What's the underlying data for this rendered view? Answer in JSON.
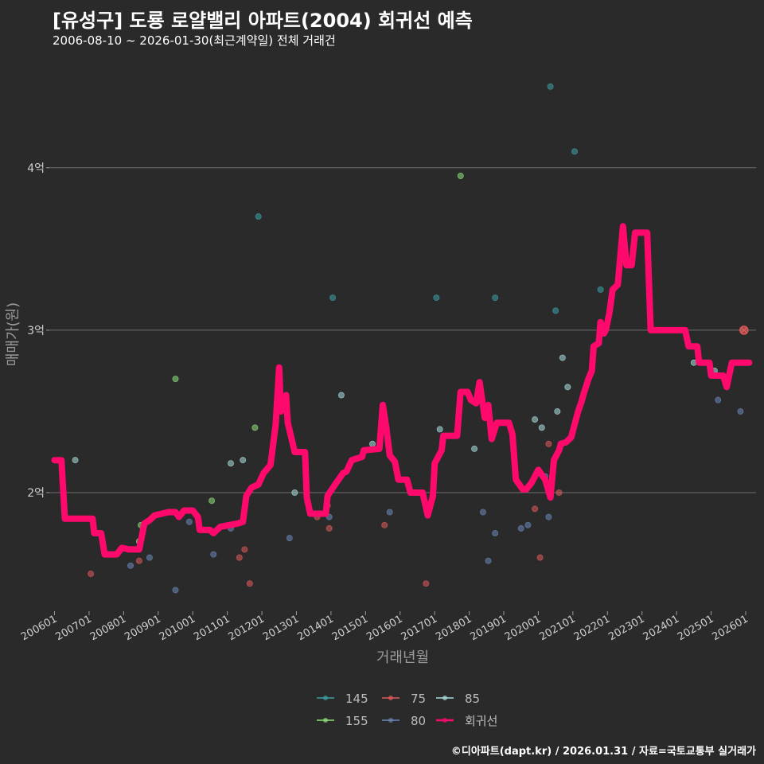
{
  "header": {
    "title": "[유성구] 도룡 로얄밸리 아파트(2004) 회귀선 예측",
    "subtitle": "2006-08-10 ~ 2026-01-30(최근계약일) 전체 거래건"
  },
  "caption": "©디아파트(dapt.kr) / 2026.01.31 / 자료=국토교통부 실거래가",
  "colors": {
    "background": "#2b2a2b",
    "grid": "#6e6e6e",
    "regression": "#ff0a6c",
    "s145": "#3aa0a6",
    "s75": "#e05a5a",
    "s85": "#a8dede",
    "s155": "#8ee07a",
    "s80": "#6b86b8"
  },
  "chart_data": {
    "type": "scatter",
    "title": "[유성구] 도룡 로얄밸리 아파트(2004) 회귀선 예측",
    "xlabel": "거래년월",
    "ylabel": "매매가(원)",
    "xlim": [
      2005.85,
      2026.3
    ],
    "ylim": [
      1.27,
      4.68
    ],
    "x_ticks": [
      2006,
      2007,
      2008,
      2009,
      2010,
      2011,
      2012,
      2013,
      2014,
      2015,
      2016,
      2017,
      2018,
      2019,
      2020,
      2021,
      2022,
      2023,
      2024,
      2025,
      2026
    ],
    "x_tick_labels": [
      "200601",
      "200701",
      "200801",
      "200901",
      "201001",
      "201101",
      "201201",
      "201301",
      "201401",
      "201501",
      "201601",
      "201701",
      "201801",
      "201901",
      "202001",
      "202101",
      "202201",
      "202301",
      "202401",
      "202501",
      "202601"
    ],
    "y_ticks": [
      2,
      3,
      4
    ],
    "y_tick_labels": [
      "2억",
      "3억",
      "4억"
    ],
    "legend": {
      "position": "bottom",
      "items": [
        {
          "key": "145",
          "label": "145"
        },
        {
          "key": "75",
          "label": "75"
        },
        {
          "key": "85",
          "label": "85"
        },
        {
          "key": "155",
          "label": "155"
        },
        {
          "key": "80",
          "label": "80"
        },
        {
          "key": "reg",
          "label": "회귀선"
        }
      ]
    },
    "series": [
      {
        "name": "145",
        "points": [
          [
            2011.9,
            3.7
          ],
          [
            2014.05,
            3.2
          ],
          [
            2017.05,
            3.2
          ],
          [
            2018.75,
            3.2
          ],
          [
            2020.35,
            4.5
          ],
          [
            2021.05,
            4.1
          ],
          [
            2020.5,
            3.12
          ],
          [
            2021.8,
            3.25
          ]
        ]
      },
      {
        "name": "155",
        "points": [
          [
            2009.5,
            2.7
          ],
          [
            2017.75,
            3.95
          ],
          [
            2008.5,
            1.8
          ],
          [
            2008.45,
            1.7
          ],
          [
            2010.55,
            1.95
          ],
          [
            2011.8,
            2.4
          ]
        ]
      },
      {
        "name": "85",
        "points": [
          [
            2006.6,
            2.2
          ],
          [
            2011.45,
            2.2
          ],
          [
            2011.1,
            2.18
          ],
          [
            2014.3,
            2.6
          ],
          [
            2015.2,
            2.3
          ],
          [
            2019.9,
            2.45
          ],
          [
            2020.1,
            2.4
          ],
          [
            2020.55,
            2.5
          ],
          [
            2020.7,
            2.83
          ],
          [
            2020.85,
            2.65
          ],
          [
            2024.5,
            2.8
          ],
          [
            2025.1,
            2.75
          ],
          [
            2012.95,
            2.0
          ],
          [
            2017.15,
            2.39
          ],
          [
            2018.15,
            2.27
          ]
        ]
      },
      {
        "name": "75",
        "points": [
          [
            2007.05,
            1.5
          ],
          [
            2008.45,
            1.58
          ],
          [
            2011.35,
            1.6
          ],
          [
            2011.5,
            1.65
          ],
          [
            2011.65,
            1.44
          ],
          [
            2013.6,
            1.85
          ],
          [
            2013.9,
            1.92
          ],
          [
            2013.95,
            1.78
          ],
          [
            2015.55,
            1.8
          ],
          [
            2016.75,
            1.44
          ],
          [
            2019.9,
            1.9
          ],
          [
            2020.05,
            1.6
          ],
          [
            2020.3,
            2.3
          ],
          [
            2020.6,
            2.0
          ],
          [
            2025.95,
            3.0
          ]
        ]
      },
      {
        "name": "80",
        "points": [
          [
            2008.2,
            1.55
          ],
          [
            2008.75,
            1.6
          ],
          [
            2009.5,
            1.4
          ],
          [
            2009.9,
            1.82
          ],
          [
            2010.6,
            1.62
          ],
          [
            2011.1,
            1.78
          ],
          [
            2012.8,
            1.72
          ],
          [
            2013.95,
            1.85
          ],
          [
            2015.7,
            1.88
          ],
          [
            2018.4,
            1.88
          ],
          [
            2018.55,
            1.58
          ],
          [
            2018.75,
            1.75
          ],
          [
            2019.5,
            1.78
          ],
          [
            2019.7,
            1.8
          ],
          [
            2020.2,
            2.1
          ],
          [
            2020.3,
            1.85
          ],
          [
            2025.2,
            2.57
          ],
          [
            2025.85,
            2.5
          ]
        ]
      }
    ],
    "regression": {
      "name": "회귀선",
      "points": [
        [
          2006.0,
          2.2
        ],
        [
          2006.2,
          2.2
        ],
        [
          2006.3,
          1.84
        ],
        [
          2007.1,
          1.84
        ],
        [
          2007.15,
          1.75
        ],
        [
          2007.35,
          1.75
        ],
        [
          2007.45,
          1.62
        ],
        [
          2007.8,
          1.62
        ],
        [
          2007.95,
          1.66
        ],
        [
          2008.15,
          1.65
        ],
        [
          2008.45,
          1.65
        ],
        [
          2008.6,
          1.81
        ],
        [
          2008.75,
          1.83
        ],
        [
          2008.9,
          1.86
        ],
        [
          2009.1,
          1.87
        ],
        [
          2009.3,
          1.88
        ],
        [
          2009.5,
          1.88
        ],
        [
          2009.6,
          1.85
        ],
        [
          2009.75,
          1.89
        ],
        [
          2010.0,
          1.89
        ],
        [
          2010.15,
          1.85
        ],
        [
          2010.2,
          1.77
        ],
        [
          2010.5,
          1.77
        ],
        [
          2010.6,
          1.75
        ],
        [
          2010.8,
          1.79
        ],
        [
          2011.3,
          1.81
        ],
        [
          2011.45,
          1.82
        ],
        [
          2011.55,
          1.98
        ],
        [
          2011.7,
          2.03
        ],
        [
          2011.9,
          2.05
        ],
        [
          2012.05,
          2.12
        ],
        [
          2012.25,
          2.17
        ],
        [
          2012.4,
          2.42
        ],
        [
          2012.5,
          2.77
        ],
        [
          2012.55,
          2.5
        ],
        [
          2012.7,
          2.6
        ],
        [
          2012.75,
          2.43
        ],
        [
          2012.95,
          2.25
        ],
        [
          2013.25,
          2.25
        ],
        [
          2013.3,
          1.97
        ],
        [
          2013.4,
          1.87
        ],
        [
          2013.85,
          1.87
        ],
        [
          2013.9,
          1.98
        ],
        [
          2014.15,
          2.06
        ],
        [
          2014.35,
          2.12
        ],
        [
          2014.45,
          2.13
        ],
        [
          2014.6,
          2.2
        ],
        [
          2014.9,
          2.22
        ],
        [
          2014.95,
          2.26
        ],
        [
          2015.4,
          2.27
        ],
        [
          2015.5,
          2.54
        ],
        [
          2015.6,
          2.4
        ],
        [
          2015.7,
          2.23
        ],
        [
          2015.85,
          2.19
        ],
        [
          2015.95,
          2.08
        ],
        [
          2016.2,
          2.08
        ],
        [
          2016.3,
          2.0
        ],
        [
          2016.65,
          2.0
        ],
        [
          2016.8,
          1.86
        ],
        [
          2016.95,
          1.98
        ],
        [
          2017.0,
          2.18
        ],
        [
          2017.2,
          2.26
        ],
        [
          2017.25,
          2.35
        ],
        [
          2017.65,
          2.35
        ],
        [
          2017.75,
          2.62
        ],
        [
          2017.95,
          2.62
        ],
        [
          2018.05,
          2.57
        ],
        [
          2018.2,
          2.55
        ],
        [
          2018.3,
          2.68
        ],
        [
          2018.45,
          2.46
        ],
        [
          2018.55,
          2.54
        ],
        [
          2018.65,
          2.33
        ],
        [
          2018.8,
          2.43
        ],
        [
          2019.15,
          2.43
        ],
        [
          2019.25,
          2.36
        ],
        [
          2019.35,
          2.08
        ],
        [
          2019.55,
          2.02
        ],
        [
          2019.65,
          2.02
        ],
        [
          2019.8,
          2.06
        ],
        [
          2019.9,
          2.1
        ],
        [
          2020.0,
          2.14
        ],
        [
          2020.2,
          2.08
        ],
        [
          2020.35,
          1.97
        ],
        [
          2020.45,
          2.2
        ],
        [
          2020.6,
          2.26
        ],
        [
          2020.65,
          2.3
        ],
        [
          2020.8,
          2.31
        ],
        [
          2020.95,
          2.34
        ],
        [
          2021.05,
          2.42
        ],
        [
          2021.15,
          2.5
        ],
        [
          2021.25,
          2.56
        ],
        [
          2021.3,
          2.6
        ],
        [
          2021.45,
          2.7
        ],
        [
          2021.55,
          2.75
        ],
        [
          2021.6,
          2.9
        ],
        [
          2021.75,
          2.92
        ],
        [
          2021.8,
          3.05
        ],
        [
          2021.9,
          2.98
        ],
        [
          2021.95,
          3.0
        ],
        [
          2022.05,
          3.1
        ],
        [
          2022.15,
          3.25
        ],
        [
          2022.3,
          3.28
        ],
        [
          2022.45,
          3.64
        ],
        [
          2022.55,
          3.4
        ],
        [
          2022.7,
          3.4
        ],
        [
          2022.8,
          3.6
        ],
        [
          2023.15,
          3.6
        ],
        [
          2023.25,
          3.0
        ],
        [
          2024.25,
          3.0
        ],
        [
          2024.35,
          2.9
        ],
        [
          2024.6,
          2.9
        ],
        [
          2024.65,
          2.8
        ],
        [
          2024.95,
          2.8
        ],
        [
          2025.0,
          2.72
        ],
        [
          2025.35,
          2.72
        ],
        [
          2025.45,
          2.65
        ],
        [
          2025.6,
          2.8
        ],
        [
          2026.1,
          2.8
        ]
      ]
    },
    "predicted_marker": {
      "x": 2025.95,
      "y": 3.0
    }
  }
}
